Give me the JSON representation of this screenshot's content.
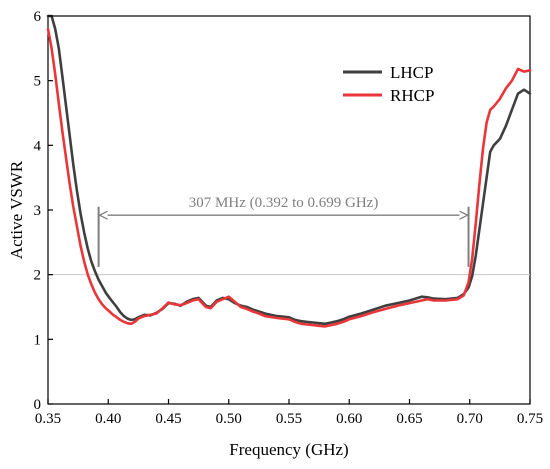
{
  "chart_data": {
    "type": "line",
    "title": "",
    "xlabel": "Frequency (GHz)",
    "ylabel": "Active VSWR",
    "xlim": [
      0.35,
      0.75
    ],
    "ylim": [
      0,
      6
    ],
    "xticks": [
      0.35,
      0.4,
      0.45,
      0.5,
      0.55,
      0.6,
      0.65,
      0.7,
      0.75
    ],
    "xtick_labels": [
      "0.35",
      "0.40",
      "0.45",
      "0.50",
      "0.55",
      "0.60",
      "0.65",
      "0.70",
      "0.75"
    ],
    "yticks": [
      0,
      1,
      2,
      3,
      4,
      5,
      6
    ],
    "ytick_labels": [
      "0",
      "1",
      "2",
      "3",
      "4",
      "5",
      "6"
    ],
    "grid": false,
    "legend_position": "top-right",
    "reference_line": {
      "y": 2,
      "color": "#c8c8c8"
    },
    "annotation": {
      "text": "307 MHz (0.392 to 0.699 GHz)",
      "x_start": 0.392,
      "x_end": 0.699,
      "color": "#7f7f7f"
    },
    "series": [
      {
        "name": "LHCP",
        "color": "#3f3f3f",
        "x": [
          0.35,
          0.353,
          0.356,
          0.359,
          0.362,
          0.365,
          0.368,
          0.371,
          0.374,
          0.377,
          0.38,
          0.383,
          0.386,
          0.389,
          0.392,
          0.395,
          0.398,
          0.401,
          0.404,
          0.407,
          0.41,
          0.413,
          0.416,
          0.419,
          0.422,
          0.425,
          0.43,
          0.435,
          0.44,
          0.445,
          0.45,
          0.455,
          0.46,
          0.465,
          0.47,
          0.475,
          0.478,
          0.481,
          0.485,
          0.49,
          0.495,
          0.5,
          0.505,
          0.51,
          0.515,
          0.52,
          0.525,
          0.53,
          0.54,
          0.55,
          0.555,
          0.56,
          0.565,
          0.57,
          0.575,
          0.58,
          0.585,
          0.59,
          0.595,
          0.6,
          0.61,
          0.62,
          0.63,
          0.64,
          0.65,
          0.66,
          0.665,
          0.67,
          0.68,
          0.69,
          0.695,
          0.699,
          0.702,
          0.705,
          0.708,
          0.711,
          0.714,
          0.717,
          0.72,
          0.725,
          0.73,
          0.735,
          0.74,
          0.745,
          0.75
        ],
        "y": [
          6.0,
          6.0,
          5.8,
          5.5,
          5.05,
          4.6,
          4.15,
          3.7,
          3.3,
          2.95,
          2.65,
          2.4,
          2.2,
          2.05,
          1.92,
          1.82,
          1.72,
          1.64,
          1.57,
          1.5,
          1.42,
          1.36,
          1.32,
          1.3,
          1.31,
          1.34,
          1.38,
          1.37,
          1.41,
          1.47,
          1.56,
          1.55,
          1.52,
          1.58,
          1.62,
          1.64,
          1.58,
          1.52,
          1.5,
          1.6,
          1.64,
          1.62,
          1.56,
          1.52,
          1.5,
          1.46,
          1.43,
          1.4,
          1.36,
          1.34,
          1.3,
          1.28,
          1.27,
          1.26,
          1.25,
          1.24,
          1.26,
          1.28,
          1.31,
          1.35,
          1.4,
          1.46,
          1.52,
          1.56,
          1.6,
          1.66,
          1.65,
          1.63,
          1.62,
          1.64,
          1.7,
          1.8,
          1.98,
          2.3,
          2.7,
          3.1,
          3.5,
          3.9,
          4.0,
          4.1,
          4.3,
          4.55,
          4.8,
          4.86,
          4.8
        ]
      },
      {
        "name": "RHCP",
        "color": "#e8363a",
        "x": [
          0.35,
          0.353,
          0.356,
          0.359,
          0.362,
          0.365,
          0.368,
          0.371,
          0.374,
          0.377,
          0.38,
          0.383,
          0.386,
          0.389,
          0.392,
          0.395,
          0.398,
          0.401,
          0.404,
          0.407,
          0.41,
          0.413,
          0.416,
          0.419,
          0.422,
          0.425,
          0.43,
          0.435,
          0.44,
          0.445,
          0.45,
          0.455,
          0.46,
          0.465,
          0.47,
          0.475,
          0.478,
          0.481,
          0.485,
          0.49,
          0.495,
          0.5,
          0.505,
          0.51,
          0.515,
          0.52,
          0.525,
          0.53,
          0.54,
          0.55,
          0.555,
          0.56,
          0.565,
          0.57,
          0.575,
          0.58,
          0.585,
          0.59,
          0.595,
          0.6,
          0.61,
          0.62,
          0.63,
          0.64,
          0.65,
          0.66,
          0.665,
          0.67,
          0.68,
          0.69,
          0.695,
          0.699,
          0.702,
          0.705,
          0.708,
          0.711,
          0.714,
          0.717,
          0.72,
          0.725,
          0.73,
          0.735,
          0.74,
          0.745,
          0.75
        ],
        "y": [
          5.8,
          5.5,
          5.1,
          4.65,
          4.2,
          3.8,
          3.4,
          3.05,
          2.75,
          2.45,
          2.2,
          2.0,
          1.85,
          1.72,
          1.62,
          1.54,
          1.48,
          1.43,
          1.38,
          1.34,
          1.3,
          1.27,
          1.25,
          1.24,
          1.27,
          1.32,
          1.36,
          1.38,
          1.4,
          1.48,
          1.57,
          1.54,
          1.53,
          1.56,
          1.6,
          1.62,
          1.56,
          1.5,
          1.48,
          1.58,
          1.62,
          1.66,
          1.58,
          1.5,
          1.47,
          1.43,
          1.4,
          1.36,
          1.33,
          1.31,
          1.27,
          1.24,
          1.23,
          1.22,
          1.21,
          1.2,
          1.22,
          1.24,
          1.27,
          1.31,
          1.36,
          1.42,
          1.47,
          1.52,
          1.56,
          1.6,
          1.62,
          1.6,
          1.6,
          1.62,
          1.68,
          1.88,
          2.25,
          2.8,
          3.4,
          3.95,
          4.35,
          4.55,
          4.6,
          4.72,
          4.88,
          5.0,
          5.18,
          5.14,
          5.16
        ]
      }
    ]
  }
}
